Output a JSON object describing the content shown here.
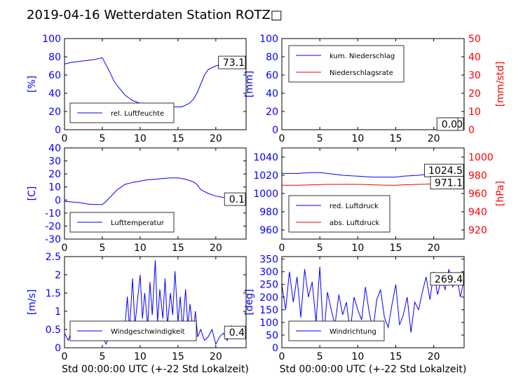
{
  "title": "2019-04-16 Wetterdaten Station ROTZ□",
  "colors": {
    "primary": "#0000ff",
    "secondary": "#ff0000",
    "axis": "#000000"
  },
  "chart_data": [
    {
      "id": "humidity",
      "type": "line",
      "title": "",
      "xlabel": "",
      "ylabel": "[%]",
      "xlim": [
        0,
        24
      ],
      "ylim": [
        0,
        100
      ],
      "xticks": [
        0,
        5,
        10,
        15,
        20
      ],
      "yticks": [
        0,
        20,
        40,
        60,
        80,
        100
      ],
      "legend": "lower-left",
      "annotation": "73.1",
      "series": [
        {
          "name": "rel. Luftfeuchte",
          "color": "#0000ff",
          "axis": "left",
          "x": [
            0,
            1,
            2,
            3,
            4,
            5,
            5.3,
            6,
            6.5,
            7,
            7.5,
            8,
            8.5,
            9,
            10,
            11,
            12,
            13,
            14,
            14.5,
            15,
            15.5,
            16,
            16.5,
            17,
            17.5,
            18,
            18.5,
            19,
            20,
            21,
            22,
            23,
            24
          ],
          "y": [
            72,
            74,
            75,
            76,
            77,
            79,
            74,
            63,
            54,
            48,
            43,
            38,
            35,
            32,
            29,
            28,
            27,
            26,
            26,
            25,
            25,
            25,
            27,
            29,
            33,
            40,
            50,
            60,
            66,
            70,
            72,
            72,
            73,
            73
          ]
        }
      ]
    },
    {
      "id": "precip",
      "type": "line",
      "title": "",
      "xlabel": "",
      "ylabel": "[mm]",
      "y2label": "[mm/std]",
      "xlim": [
        0,
        24
      ],
      "ylim": [
        0,
        100
      ],
      "y2lim": [
        0,
        50
      ],
      "xticks": [
        0,
        5,
        10,
        15,
        20
      ],
      "yticks": [
        0,
        20,
        40,
        60,
        80,
        100
      ],
      "y2ticks": [
        0,
        10,
        20,
        30,
        40,
        50
      ],
      "legend": "upper-left",
      "annotation": "0.0",
      "annotation2": "0.0",
      "series": [
        {
          "name": "kum. Niederschlag",
          "color": "#0000ff",
          "axis": "left",
          "x": [
            0,
            24
          ],
          "y": [
            0,
            0
          ]
        },
        {
          "name": "Niederschlagsrate",
          "color": "#ff0000",
          "axis": "right",
          "x": [
            0,
            24
          ],
          "y": [
            0,
            0
          ]
        }
      ]
    },
    {
      "id": "temperature",
      "type": "line",
      "title": "",
      "xlabel": "",
      "ylabel": "[C]",
      "xlim": [
        0,
        24
      ],
      "ylim": [
        -30,
        40
      ],
      "xticks": [
        0,
        5,
        10,
        15,
        20
      ],
      "yticks": [
        -30,
        -20,
        -10,
        0,
        10,
        20,
        30,
        40
      ],
      "legend": "lower-left",
      "annotation": "0.1",
      "series": [
        {
          "name": "Lufttemperatur",
          "color": "#0000ff",
          "axis": "left",
          "x": [
            0,
            1,
            2,
            3,
            4,
            5,
            5.5,
            6,
            6.5,
            7,
            7.5,
            8,
            9,
            10,
            11,
            12,
            13,
            14,
            15,
            16,
            17,
            17.5,
            18,
            19,
            20,
            21,
            22,
            23,
            24
          ],
          "y": [
            -1,
            -1.5,
            -2,
            -3,
            -3.5,
            -3.5,
            -1,
            2,
            5,
            8,
            10,
            12,
            13.5,
            14.5,
            15.5,
            16,
            16.5,
            17,
            17,
            16,
            14,
            12,
            8,
            5,
            3,
            2,
            1,
            0.5,
            0.1
          ]
        }
      ]
    },
    {
      "id": "pressure",
      "type": "line",
      "title": "",
      "xlabel": "",
      "ylabel": "",
      "y2label": "[hPa]",
      "xlim": [
        0,
        24
      ],
      "ylim": [
        950,
        1050
      ],
      "y2lim": [
        910,
        1010
      ],
      "xticks": [
        0,
        5,
        10,
        15,
        20
      ],
      "yticks": [
        960,
        980,
        1000,
        1020,
        1040
      ],
      "y2ticks": [
        920,
        940,
        960,
        980,
        1000
      ],
      "legend": "lower-left",
      "annotation": "1024.5",
      "annotation2": "971.1",
      "series": [
        {
          "name": "red. Luftdruck",
          "color": "#0000ff",
          "axis": "left",
          "x": [
            0,
            2,
            4,
            5,
            6,
            8,
            10,
            12,
            14,
            15,
            16,
            18,
            20,
            22,
            24
          ],
          "y": [
            1022,
            1022,
            1023,
            1023,
            1022,
            1020,
            1019,
            1018,
            1018,
            1018,
            1019,
            1020,
            1022,
            1023,
            1024.5
          ]
        },
        {
          "name": "abs. Luftdruck",
          "color": "#ff0000",
          "axis": "right",
          "x": [
            0,
            2,
            4,
            6,
            8,
            10,
            12,
            14,
            15,
            16,
            18,
            20,
            22,
            24
          ],
          "y": [
            969,
            969,
            969.5,
            970,
            970,
            970,
            969.5,
            969,
            969,
            969.5,
            970,
            970.5,
            971,
            971.1
          ]
        }
      ]
    },
    {
      "id": "windspeed",
      "type": "line",
      "title": "",
      "xlabel": "Std 00:00:00 UTC (+-22 Std Lokalzeit)",
      "ylabel": "[m/s]",
      "xlim": [
        0,
        24
      ],
      "ylim": [
        0,
        2.5
      ],
      "xticks": [
        0,
        5,
        10,
        15,
        20
      ],
      "yticks": [
        0,
        0.5,
        1.0,
        1.5,
        2.0,
        2.5
      ],
      "legend": "lower-left",
      "annotation": "0.4",
      "series": [
        {
          "name": "Windgeschwindigkeit",
          "color": "#0000ff",
          "axis": "left",
          "x": [
            0,
            0.5,
            1,
            1.5,
            2,
            2.5,
            3,
            3.5,
            4,
            4.5,
            5,
            5.5,
            6,
            6.5,
            7,
            7.5,
            8,
            8.3,
            8.6,
            9,
            9.3,
            9.6,
            10,
            10.3,
            10.6,
            11,
            11.3,
            11.6,
            12,
            12.3,
            12.6,
            13,
            13.3,
            13.6,
            14,
            14.3,
            14.6,
            15,
            15.3,
            15.6,
            16,
            16.3,
            16.6,
            17,
            17.3,
            17.6,
            18,
            18.5,
            19,
            19.5,
            20,
            20.5,
            21,
            21.5,
            22,
            22.5,
            23,
            23.5,
            24
          ],
          "y": [
            0.4,
            0.2,
            0.5,
            0.3,
            0.6,
            0.2,
            0.4,
            0.3,
            0.5,
            0.2,
            0.3,
            0.1,
            0.4,
            0.2,
            0.5,
            0.3,
            0.6,
            1.4,
            0.5,
            1.9,
            0.6,
            1.2,
            2.0,
            0.8,
            1.5,
            0.6,
            1.8,
            0.9,
            2.4,
            0.7,
            1.6,
            0.8,
            1.9,
            0.6,
            1.5,
            0.9,
            2.1,
            0.7,
            1.4,
            0.5,
            1.6,
            0.6,
            1.2,
            0.4,
            1.0,
            0.3,
            0.5,
            0.2,
            0.3,
            0.5,
            0.1,
            0.3,
            0.4,
            0.2,
            0.6,
            0.3,
            0.5,
            0.4,
            0.4
          ]
        }
      ]
    },
    {
      "id": "winddir",
      "type": "line",
      "title": "",
      "xlabel": "Std 00:00:00 UTC (+-22 Std Lokalzeit)",
      "ylabel": "[deg]",
      "xlim": [
        0,
        24
      ],
      "ylim": [
        0,
        360
      ],
      "xticks": [
        0,
        5,
        10,
        15,
        20
      ],
      "yticks": [
        0,
        50,
        100,
        150,
        200,
        250,
        300,
        350
      ],
      "legend": "lower-left",
      "annotation": "269.4",
      "series": [
        {
          "name": "Windrichtung",
          "color": "#0000ff",
          "axis": "left",
          "x": [
            0,
            0.5,
            1,
            1.5,
            2,
            2.5,
            3,
            3.5,
            4,
            4.5,
            5,
            5.5,
            6,
            6.5,
            7,
            7.5,
            8,
            8.5,
            9,
            9.5,
            10,
            10.5,
            11,
            11.5,
            12,
            12.5,
            13,
            13.5,
            14,
            14.5,
            15,
            15.5,
            16,
            16.5,
            17,
            17.5,
            18,
            18.5,
            19,
            19.5,
            20,
            20.5,
            21,
            21.5,
            22,
            22.5,
            23,
            23.5,
            24
          ],
          "y": [
            250,
            150,
            300,
            180,
            280,
            120,
            310,
            200,
            260,
            100,
            320,
            30,
            220,
            150,
            90,
            210,
            130,
            180,
            60,
            200,
            150,
            110,
            240,
            140,
            70,
            190,
            230,
            120,
            80,
            170,
            250,
            90,
            130,
            200,
            60,
            180,
            150,
            220,
            280,
            190,
            300,
            210,
            270,
            230,
            310,
            240,
            290,
            200,
            269
          ]
        }
      ]
    }
  ]
}
